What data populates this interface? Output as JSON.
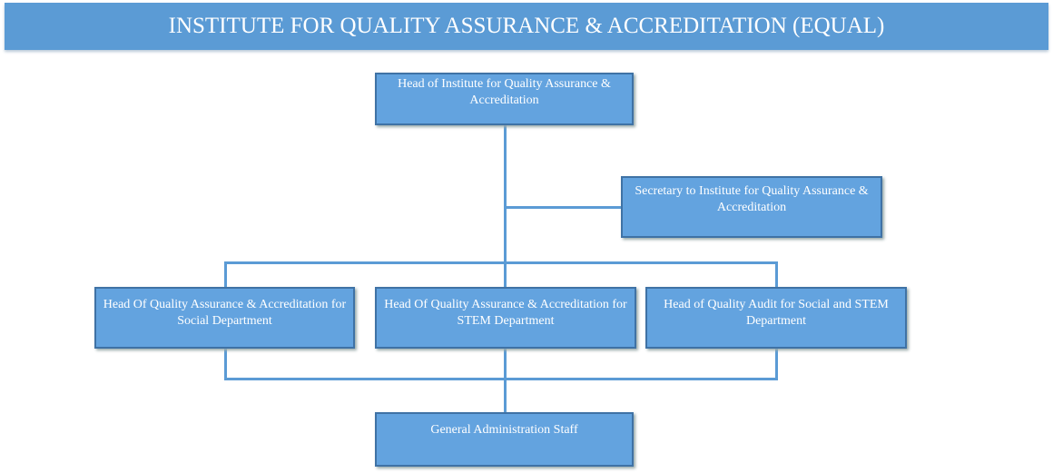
{
  "title": "INSTITUTE FOR QUALITY ASSURANCE & ACCREDITATION (EQUAL)",
  "nodes": {
    "head": "Head of Institute for Quality Assurance & Accreditation",
    "secretary": "Secretary to  Institute for  Quality Assurance & Accreditation",
    "social": "Head Of Quality Assurance & Accreditation for Social Department",
    "stem": "Head Of Quality Assurance & Accreditation for STEM Department",
    "audit": "Head of Quality Audit for Social and STEM Department",
    "general": "General Administration Staff"
  },
  "colors": {
    "banner": "#5b9bd5",
    "box": "#63a3df",
    "connector": "#5b9bd5"
  }
}
